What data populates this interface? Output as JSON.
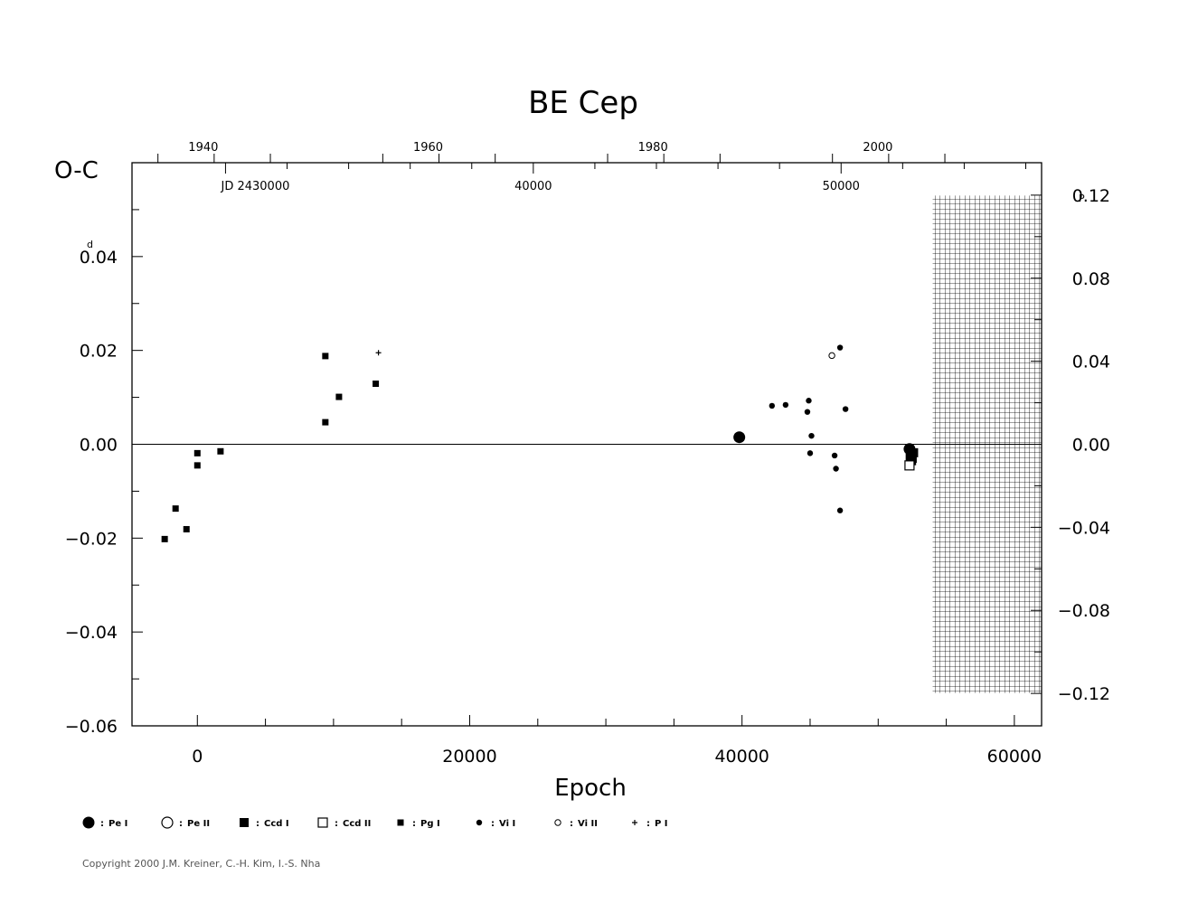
{
  "chart_data": {
    "type": "scatter",
    "title": "BE Cep",
    "ylabel": "O-C",
    "xlabel": "Epoch",
    "xlim": [
      -4800,
      62000
    ],
    "ylim": [
      -0.06,
      0.06
    ],
    "x_ticks": [
      "0",
      "20000",
      "40000",
      "60000"
    ],
    "x_tick_values": [
      0,
      20000,
      40000,
      60000
    ],
    "y_ticks": [
      "0.04",
      "0.02",
      "0.00",
      "−0.02",
      "−0.04",
      "−0.06"
    ],
    "y_tick_values": [
      0.04,
      0.02,
      0.0,
      -0.02,
      -0.04,
      -0.06
    ],
    "y_unit_superscript": "d",
    "right_ticks": [
      "0.12",
      "0.08",
      "0.04",
      "0.00",
      "−0.04",
      "−0.08",
      "−0.12"
    ],
    "right_tick_values": [
      0.12,
      0.08,
      0.04,
      0.0,
      -0.04,
      -0.08,
      -0.12
    ],
    "right_unit_superscript": "P",
    "right_scale_day_per_phase": 0.4424,
    "top_year_ticks": [
      "1940",
      "1960",
      "1980",
      "2000"
    ],
    "top_year_values": [
      1940,
      1960,
      1980,
      2000
    ],
    "jd_ticks": [
      "JD 2430000",
      "40000",
      "50000"
    ],
    "jd_values": [
      2430000,
      2440000,
      2450000
    ],
    "epoch_of_jd_2430000": 2068,
    "days_per_epoch": 0.4424,
    "hatched_future_region": true,
    "series": [
      {
        "name": "Pe I",
        "marker": "filled-circle-large",
        "points": [
          [
            39800,
            0.0015
          ],
          [
            52300,
            -0.001
          ]
        ]
      },
      {
        "name": "Pe II",
        "marker": "open-circle-large",
        "points": []
      },
      {
        "name": "Ccd I",
        "marker": "filled-square-large",
        "points": [
          [
            52350,
            -0.0025
          ],
          [
            52500,
            -0.003
          ],
          [
            52600,
            -0.0018
          ],
          [
            52450,
            -0.0035
          ]
        ]
      },
      {
        "name": "Ccd II",
        "marker": "open-square-large",
        "points": [
          [
            52300,
            -0.0045
          ]
        ]
      },
      {
        "name": "Pg I",
        "marker": "filled-square-small",
        "points": [
          [
            -2400,
            -0.0202
          ],
          [
            -1600,
            -0.0137
          ],
          [
            -800,
            -0.0181
          ],
          [
            0,
            -0.0019
          ],
          [
            0,
            -0.0045
          ],
          [
            1700,
            -0.0015
          ],
          [
            9400,
            0.0188
          ],
          [
            9400,
            0.0047
          ],
          [
            10400,
            0.0101
          ],
          [
            13100,
            0.0129
          ]
        ]
      },
      {
        "name": "Vi I",
        "marker": "filled-circle-small",
        "points": [
          [
            42200,
            0.0082
          ],
          [
            43200,
            0.0084
          ],
          [
            44800,
            0.0069
          ],
          [
            44900,
            0.0093
          ],
          [
            45100,
            0.0018
          ],
          [
            45000,
            -0.0019
          ],
          [
            46800,
            -0.0024
          ],
          [
            46900,
            -0.0052
          ],
          [
            47200,
            0.0206
          ],
          [
            47200,
            -0.0141
          ],
          [
            47600,
            0.0075
          ]
        ]
      },
      {
        "name": "Vi II",
        "marker": "open-circle-small",
        "points": [
          [
            46600,
            0.0189
          ]
        ]
      },
      {
        "name": "P I",
        "marker": "plus",
        "points": [
          [
            13300,
            0.0195
          ]
        ]
      }
    ],
    "grid": false,
    "legend_position": "bottom"
  },
  "copyright": "Copyright 2000 J.M. Kreiner, C.-H. Kim, I.-S. Nha"
}
